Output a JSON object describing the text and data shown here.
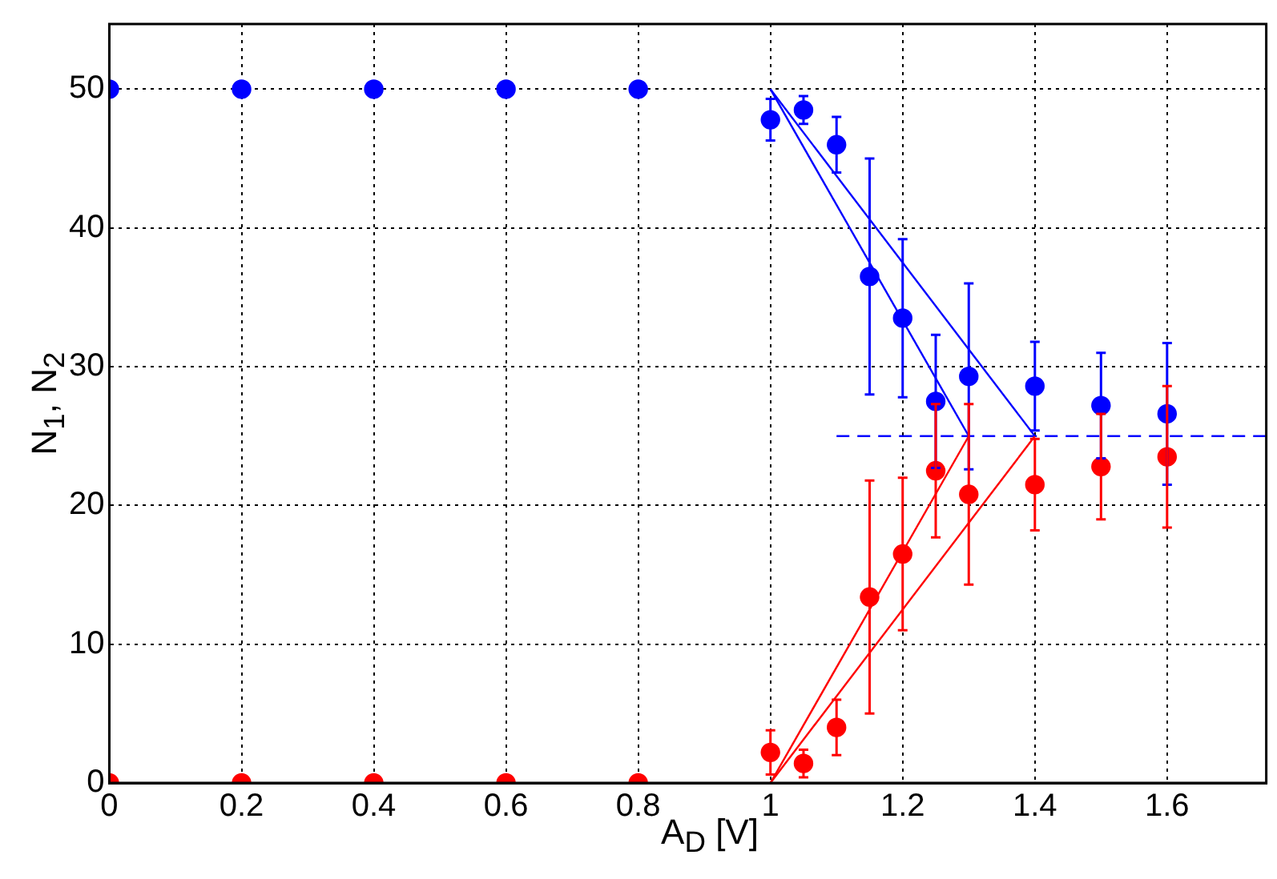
{
  "chart_data": {
    "type": "scatter",
    "xlabel": "A$_{D}$ [V]",
    "ylabel": "N$_{1}$, N$_{2}$",
    "xlim": [
      0,
      1.75
    ],
    "ylim": [
      0,
      54.7
    ],
    "xticks": [
      0,
      0.2,
      0.4,
      0.6,
      0.8,
      1,
      1.2,
      1.4,
      1.6
    ],
    "yticks": [
      0,
      10,
      20,
      30,
      40,
      50
    ],
    "grid": true,
    "legend": false,
    "marker": "circle",
    "series": [
      {
        "color": "#0000ff",
        "x": [
          0,
          0.2,
          0.4,
          0.6,
          0.8,
          1,
          1.05,
          1.1,
          1.15,
          1.2,
          1.25,
          1.3,
          1.4,
          1.5,
          1.6
        ],
        "values": [
          50,
          50,
          50,
          50,
          50,
          47.8,
          48.5,
          46,
          36.5,
          33.5,
          27.5,
          29.3,
          28.6,
          27.2,
          26.6
        ],
        "errors": [
          null,
          null,
          null,
          null,
          null,
          1.5,
          1,
          2,
          8.5,
          5.7,
          4.8,
          6.7,
          3.2,
          3.8,
          5.1
        ]
      },
      {
        "color": "#ff0000",
        "x": [
          0,
          0.2,
          0.4,
          0.6,
          0.8,
          1,
          1.05,
          1.1,
          1.15,
          1.2,
          1.25,
          1.3,
          1.4,
          1.5,
          1.6
        ],
        "values": [
          0,
          0,
          0,
          0,
          0,
          2.2,
          1.4,
          4,
          13.4,
          16.5,
          22.5,
          20.8,
          21.5,
          22.8,
          23.5
        ],
        "errors": [
          null,
          null,
          null,
          null,
          null,
          1.6,
          1,
          2,
          8.4,
          5.5,
          4.8,
          6.5,
          3.3,
          3.8,
          5.1
        ]
      },
      {
        "type": "line",
        "color": "#0000ff",
        "marker": "none",
        "line_style": "solid",
        "x": [
          1,
          1.3
        ],
        "values": [
          50,
          25
        ]
      },
      {
        "type": "line",
        "color": "#0000ff",
        "marker": "none",
        "line_style": "solid",
        "x": [
          1,
          1.4
        ],
        "values": [
          50,
          25
        ]
      },
      {
        "type": "line",
        "color": "#ff0000",
        "marker": "none",
        "line_style": "solid",
        "x": [
          1,
          1.3
        ],
        "values": [
          0,
          25
        ]
      },
      {
        "type": "line",
        "color": "#ff0000",
        "marker": "none",
        "line_style": "solid",
        "x": [
          1,
          1.4
        ],
        "values": [
          0,
          25
        ]
      },
      {
        "type": "line",
        "color": "#0000ff",
        "marker": "none",
        "line_style": "dashed",
        "x": [
          1.1,
          1.75
        ],
        "values": [
          25,
          25
        ]
      }
    ]
  }
}
